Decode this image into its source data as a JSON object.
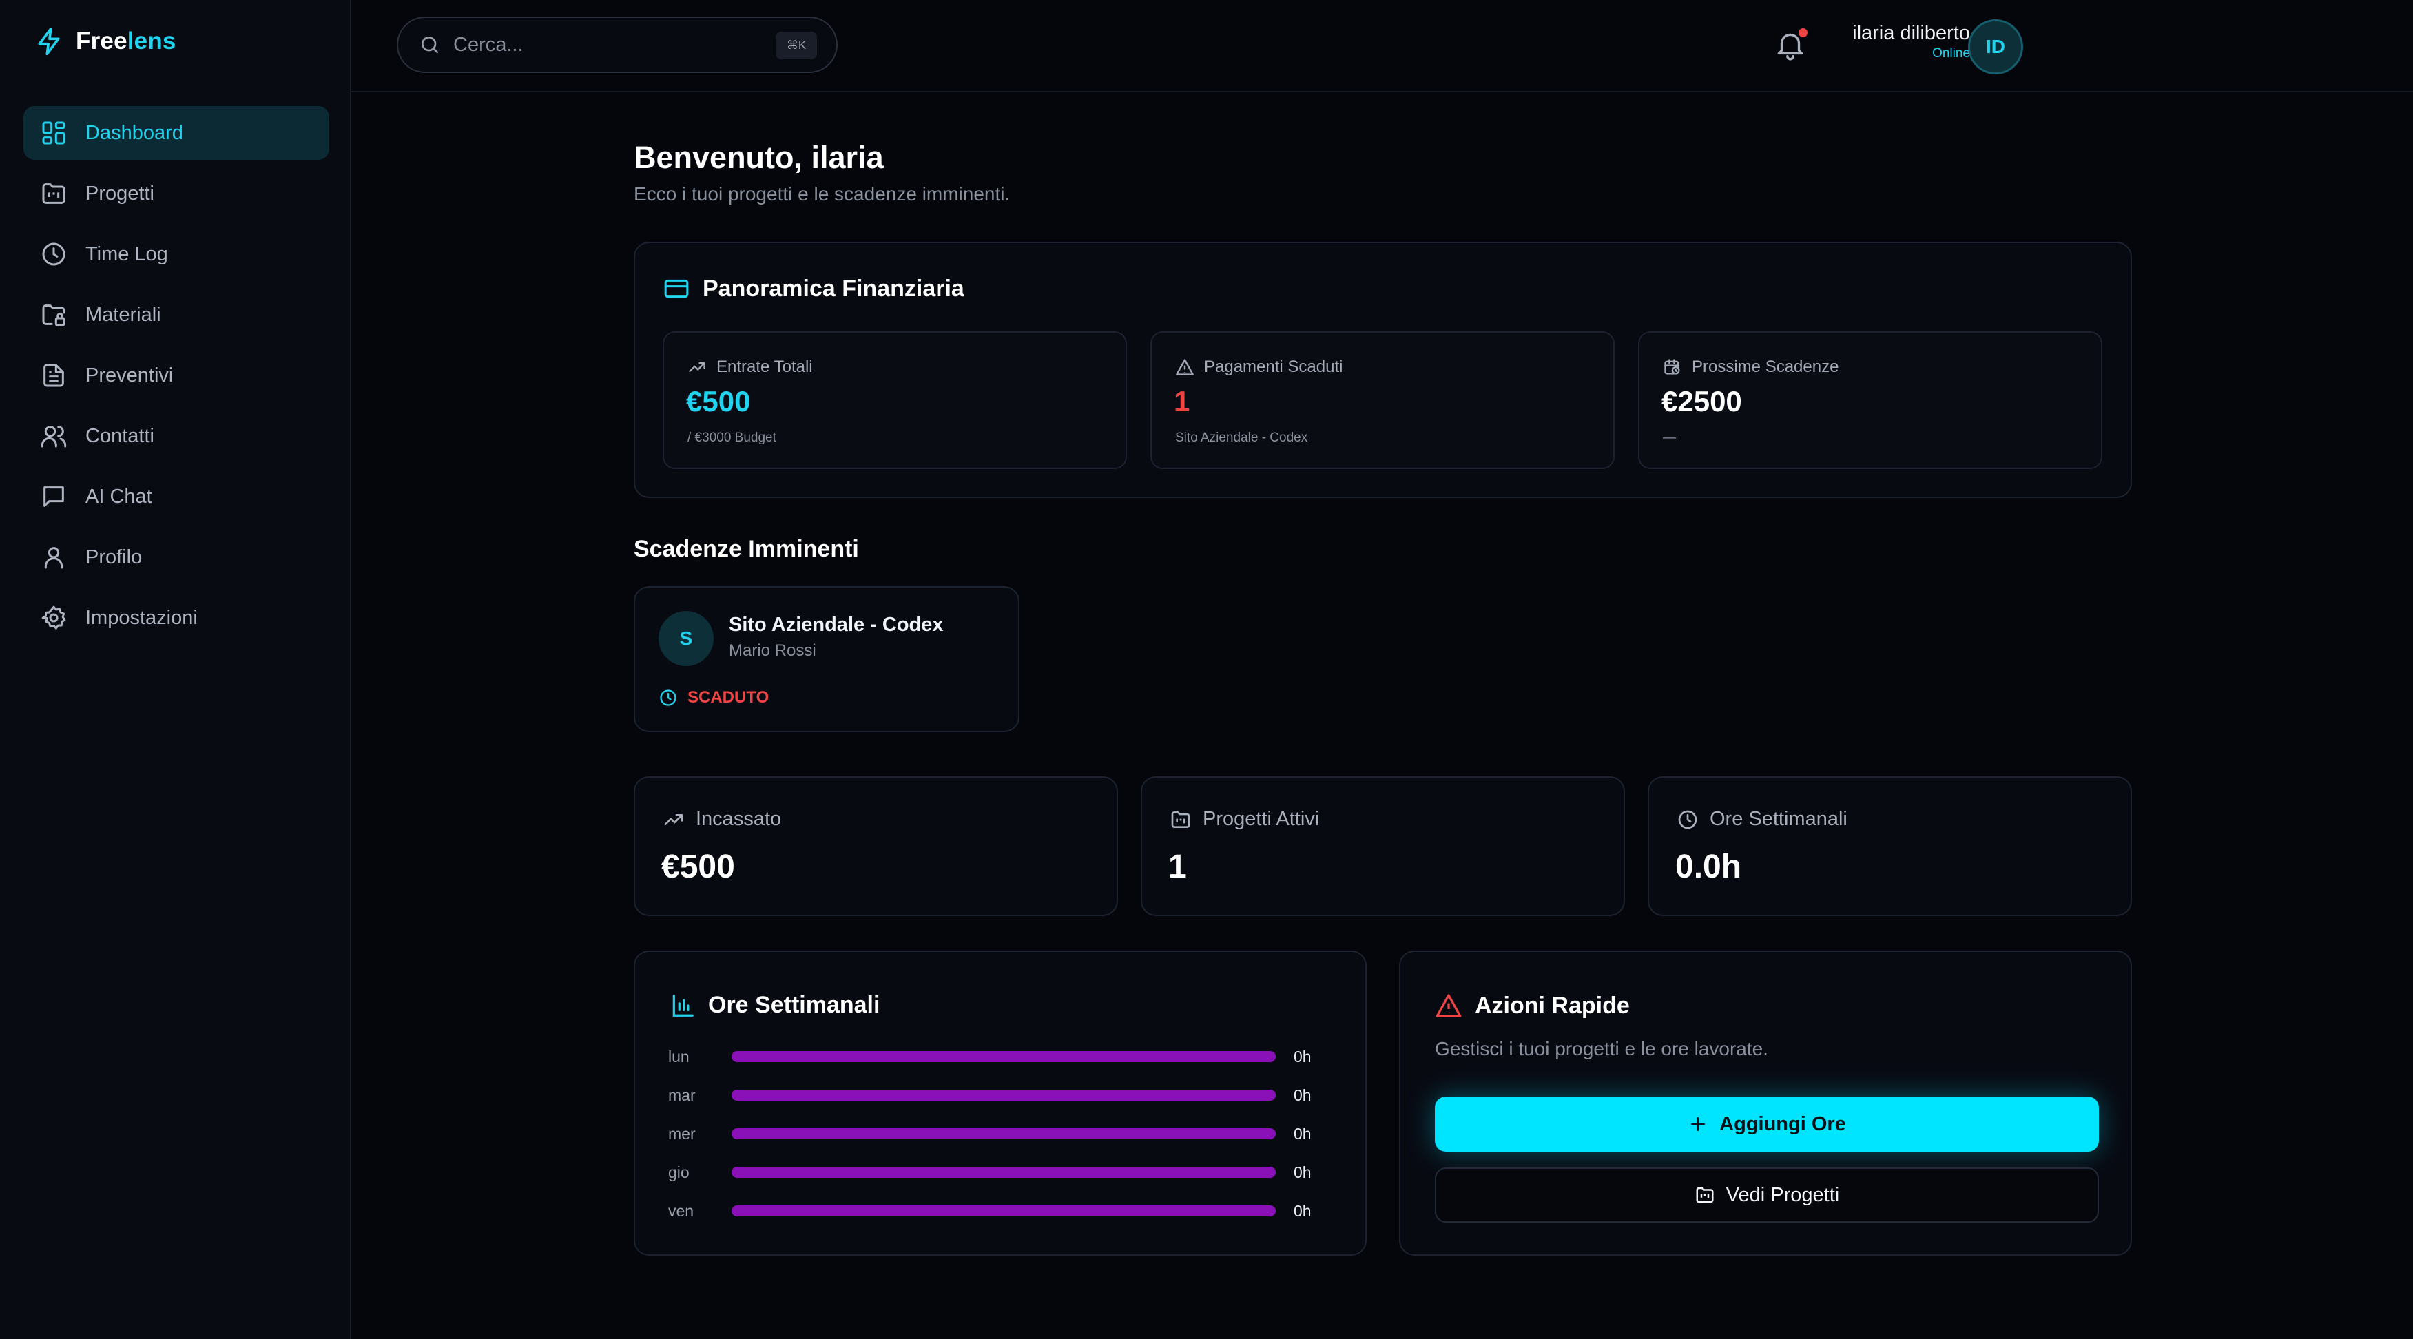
{
  "brand": {
    "name_part1": "Free",
    "name_part2": "lens",
    "accent": "#22d3ee"
  },
  "sidebar": {
    "items": [
      {
        "label": "Dashboard",
        "icon": "grid-icon",
        "active": true
      },
      {
        "label": "Progetti",
        "icon": "folder-kanban-icon"
      },
      {
        "label": "Time Log",
        "icon": "clock-icon"
      },
      {
        "label": "Materiali",
        "icon": "folder-lock-icon"
      },
      {
        "label": "Preventivi",
        "icon": "document-icon"
      },
      {
        "label": "Contatti",
        "icon": "users-icon"
      },
      {
        "label": "AI Chat",
        "icon": "chat-icon"
      },
      {
        "label": "Profilo",
        "icon": "user-icon"
      },
      {
        "label": "Impostazioni",
        "icon": "gear-icon"
      }
    ]
  },
  "topbar": {
    "search_placeholder": "Cerca...",
    "search_shortcut": "⌘K",
    "user_name": "ilaria diliberto",
    "user_status": "Online",
    "user_initials": "ID"
  },
  "page": {
    "title": "Benvenuto, ilaria",
    "subtitle": "Ecco i tuoi progetti e le scadenze imminenti."
  },
  "finance": {
    "title": "Panoramica Finanziaria",
    "cards": [
      {
        "label": "Entrate Totali",
        "value": "€500",
        "sub": "/ €3000 Budget",
        "color": "#22d3ee"
      },
      {
        "label": "Pagamenti Scaduti",
        "value": "1",
        "sub": "Sito Aziendale - Codex",
        "color": "#ef4444"
      },
      {
        "label": "Prossime Scadenze",
        "value": "€2500",
        "sub": "—",
        "color": "#ffffff"
      }
    ]
  },
  "deadlines": {
    "title": "Scadenze Imminenti",
    "items": [
      {
        "initial": "S",
        "name": "Sito Aziendale - Codex",
        "client": "Mario Rossi",
        "status": "SCADUTO"
      }
    ]
  },
  "stats": [
    {
      "label": "Incassato",
      "value": "€500"
    },
    {
      "label": "Progetti Attivi",
      "value": "1"
    },
    {
      "label": "Ore Settimanali",
      "value": "0.0h"
    }
  ],
  "weekly_hours": {
    "title": "Ore Settimanali",
    "days": [
      {
        "day": "lun",
        "value": "0h",
        "fraction": 0
      },
      {
        "day": "mar",
        "value": "0h",
        "fraction": 0
      },
      {
        "day": "mer",
        "value": "0h",
        "fraction": 0
      },
      {
        "day": "gio",
        "value": "0h",
        "fraction": 0
      },
      {
        "day": "ven",
        "value": "0h",
        "fraction": 0
      }
    ]
  },
  "quick_actions": {
    "title": "Azioni Rapide",
    "description": "Gestisci i tuoi progetti e le ore lavorate.",
    "primary_label": "Aggiungi Ore",
    "secondary_label": "Vedi Progetti"
  }
}
